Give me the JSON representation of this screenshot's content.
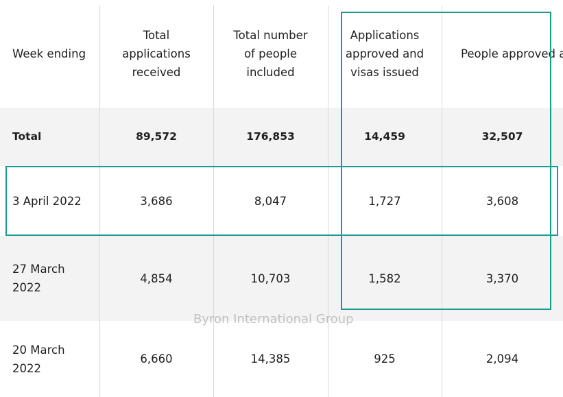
{
  "table": {
    "headers": [
      "Week ending",
      "Total\napplications\nreceived",
      "Total number\nof people\nincluded",
      "Applications\napproved and\nvisas issued",
      "People approved\nand issued visas"
    ],
    "total_row": [
      "Total",
      "89,572",
      "176,853",
      "14,459",
      "32,507"
    ],
    "rows": [
      [
        "3 April 2022",
        "3,686",
        "8,047",
        "1,727",
        "3,608"
      ],
      [
        "27 March\n2022",
        "4,854",
        "10,703",
        "1,582",
        "3,370"
      ],
      [
        "20 March\n2022",
        "6,660",
        "14,385",
        "925",
        "2,094"
      ]
    ]
  },
  "watermark": "Byron International Group",
  "colors": {
    "highlight": "#1a9a94",
    "shaded_row": "#f3f3f3"
  }
}
